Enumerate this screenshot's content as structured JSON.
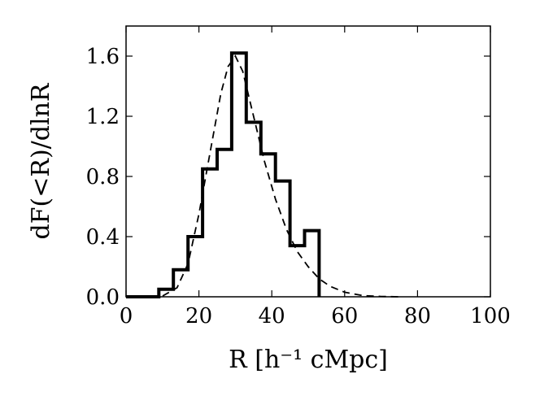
{
  "chart_data": {
    "type": "line",
    "xlabel": "R [h⁻¹ cMpc]",
    "ylabel": "dF(<R)/dlnR",
    "xlim": [
      0,
      100
    ],
    "ylim": [
      0,
      1.8
    ],
    "x_ticks": [
      0,
      20,
      40,
      60,
      80,
      100
    ],
    "x_tick_labels": [
      "0",
      "20",
      "40",
      "60",
      "80",
      "100"
    ],
    "y_ticks": [
      0.0,
      0.4,
      0.8,
      1.2,
      1.6
    ],
    "y_tick_labels": [
      "0.0",
      "0.4",
      "0.8",
      "1.2",
      "1.6"
    ],
    "grid": false,
    "legend": "none",
    "series": [
      {
        "style": "solid-step",
        "color": "#000000",
        "bin_edges": [
          0,
          9,
          13,
          17,
          21,
          25,
          29,
          33,
          37,
          41,
          45,
          49,
          53
        ],
        "values": [
          0.0,
          0.05,
          0.18,
          0.4,
          0.85,
          0.98,
          1.62,
          1.16,
          0.95,
          0.77,
          0.34,
          0.44
        ]
      },
      {
        "style": "dashed",
        "color": "#000000",
        "x": [
          0,
          5,
          10,
          14,
          17,
          20,
          23,
          26,
          28,
          30,
          32,
          35,
          38,
          41,
          44,
          47,
          50,
          53,
          56,
          60,
          65,
          70,
          75
        ],
        "y": [
          0.0,
          0.0,
          0.005,
          0.06,
          0.22,
          0.55,
          0.95,
          1.35,
          1.53,
          1.6,
          1.5,
          1.2,
          0.9,
          0.65,
          0.45,
          0.3,
          0.2,
          0.12,
          0.07,
          0.03,
          0.008,
          0.002,
          0.0
        ]
      }
    ]
  }
}
